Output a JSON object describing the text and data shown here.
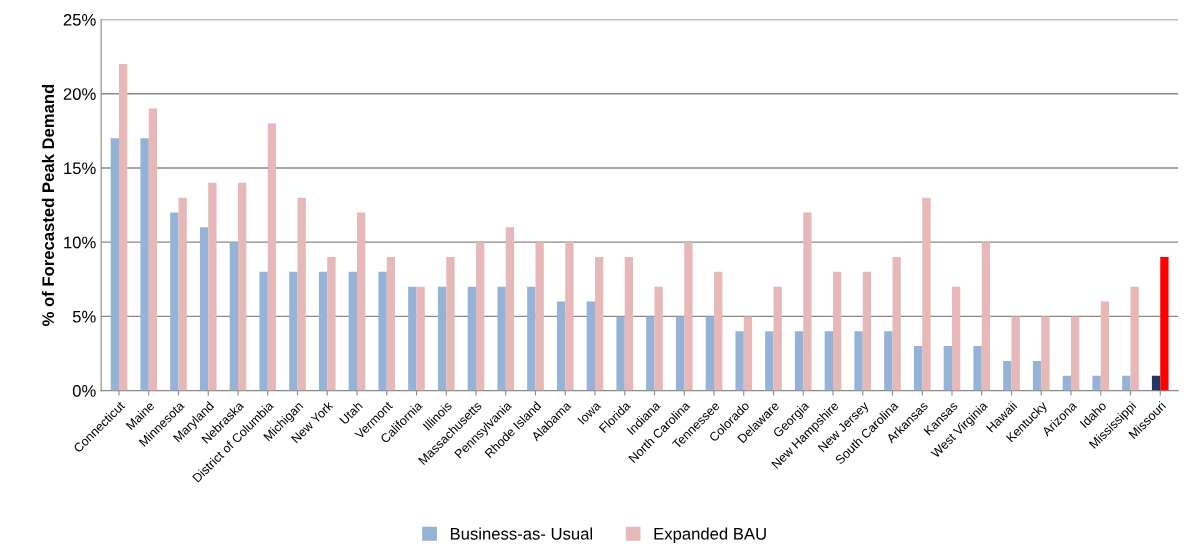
{
  "chart_data": {
    "type": "bar",
    "ylabel": "% of Forecasted Peak Demand",
    "categories": [
      "Connecticut",
      "Maine",
      "Minnesota",
      "Maryland",
      "Nebraska",
      "District of Columbia",
      "Michigan",
      "New York",
      "Utah",
      "Vermont",
      "California",
      "Illinois",
      "Massachusetts",
      "Pennsylvania",
      "Rhode Island",
      "Alabama",
      "Iowa",
      "Florida",
      "Indiana",
      "North Carolina",
      "Tennessee",
      "Colorado",
      "Delaware",
      "Georgia",
      "New Hampshire",
      "New Jersey",
      "South Carolina",
      "Arkansas",
      "Kansas",
      "West Virginia",
      "Hawaii",
      "Kentucky",
      "Arizona",
      "Idaho",
      "Mississippi",
      "Missouri"
    ],
    "series": [
      {
        "name": "Business-as- Usual",
        "color": "#95b3d7",
        "colors": [
          "#95b3d7",
          "#95b3d7",
          "#95b3d7",
          "#95b3d7",
          "#95b3d7",
          "#95b3d7",
          "#95b3d7",
          "#95b3d7",
          "#95b3d7",
          "#95b3d7",
          "#95b3d7",
          "#95b3d7",
          "#95b3d7",
          "#95b3d7",
          "#95b3d7",
          "#95b3d7",
          "#95b3d7",
          "#95b3d7",
          "#95b3d7",
          "#95b3d7",
          "#95b3d7",
          "#95b3d7",
          "#95b3d7",
          "#95b3d7",
          "#95b3d7",
          "#95b3d7",
          "#95b3d7",
          "#95b3d7",
          "#95b3d7",
          "#95b3d7",
          "#95b3d7",
          "#95b3d7",
          "#95b3d7",
          "#95b3d7",
          "#95b3d7",
          "#1f3864"
        ],
        "values": [
          17,
          17,
          12,
          11,
          10,
          8,
          8,
          8,
          8,
          8,
          7,
          7,
          7,
          7,
          7,
          6,
          6,
          5,
          5,
          5,
          5,
          4,
          4,
          4,
          4,
          4,
          4,
          3,
          3,
          3,
          2,
          2,
          1,
          1,
          1,
          1
        ]
      },
      {
        "name": "Expanded BAU",
        "color": "#e6b9b8",
        "colors": [
          "#e6b9b8",
          "#e6b9b8",
          "#e6b9b8",
          "#e6b9b8",
          "#e6b9b8",
          "#e6b9b8",
          "#e6b9b8",
          "#e6b9b8",
          "#e6b9b8",
          "#e6b9b8",
          "#e6b9b8",
          "#e6b9b8",
          "#e6b9b8",
          "#e6b9b8",
          "#e6b9b8",
          "#e6b9b8",
          "#e6b9b8",
          "#e6b9b8",
          "#e6b9b8",
          "#e6b9b8",
          "#e6b9b8",
          "#e6b9b8",
          "#e6b9b8",
          "#e6b9b8",
          "#e6b9b8",
          "#e6b9b8",
          "#e6b9b8",
          "#e6b9b8",
          "#e6b9b8",
          "#e6b9b8",
          "#e6b9b8",
          "#e6b9b8",
          "#e6b9b8",
          "#e6b9b8",
          "#e6b9b8",
          "#ff0000"
        ],
        "values": [
          22,
          19,
          13,
          14,
          14,
          18,
          13,
          9,
          12,
          9,
          7,
          9,
          10,
          11,
          10,
          10,
          9,
          9,
          7,
          10,
          8,
          5,
          7,
          12,
          8,
          8,
          9,
          13,
          7,
          10,
          5,
          5,
          5,
          6,
          7,
          9
        ]
      }
    ],
    "ylim": [
      0,
      25
    ],
    "yticks": [
      {
        "value": 0,
        "label": "0%"
      },
      {
        "value": 5,
        "label": "5%"
      },
      {
        "value": 10,
        "label": "10%"
      },
      {
        "value": 15,
        "label": "15%"
      },
      {
        "value": 20,
        "label": "20%"
      },
      {
        "value": 25,
        "label": "25%"
      }
    ],
    "grid": "y",
    "legend": "bottom"
  }
}
